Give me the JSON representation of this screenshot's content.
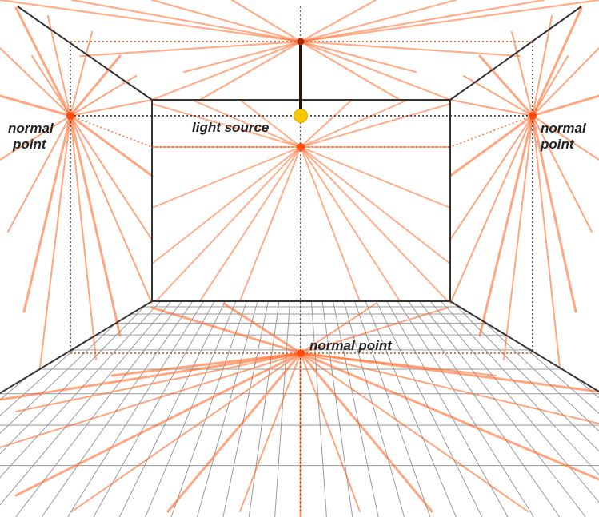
{
  "labels": {
    "normal_left_1": "normal",
    "normal_left_2": "point",
    "normal_right_1": "normal",
    "normal_right_2": "point",
    "light_source": "light source",
    "normal_floor": "normal point"
  },
  "colors": {
    "ray": "#ff6b2b",
    "ray_faint": "#ffb08a",
    "point": "#ff4a10",
    "light": "#f7c800",
    "wall_edge": "#333333",
    "grid": "#999999"
  }
}
